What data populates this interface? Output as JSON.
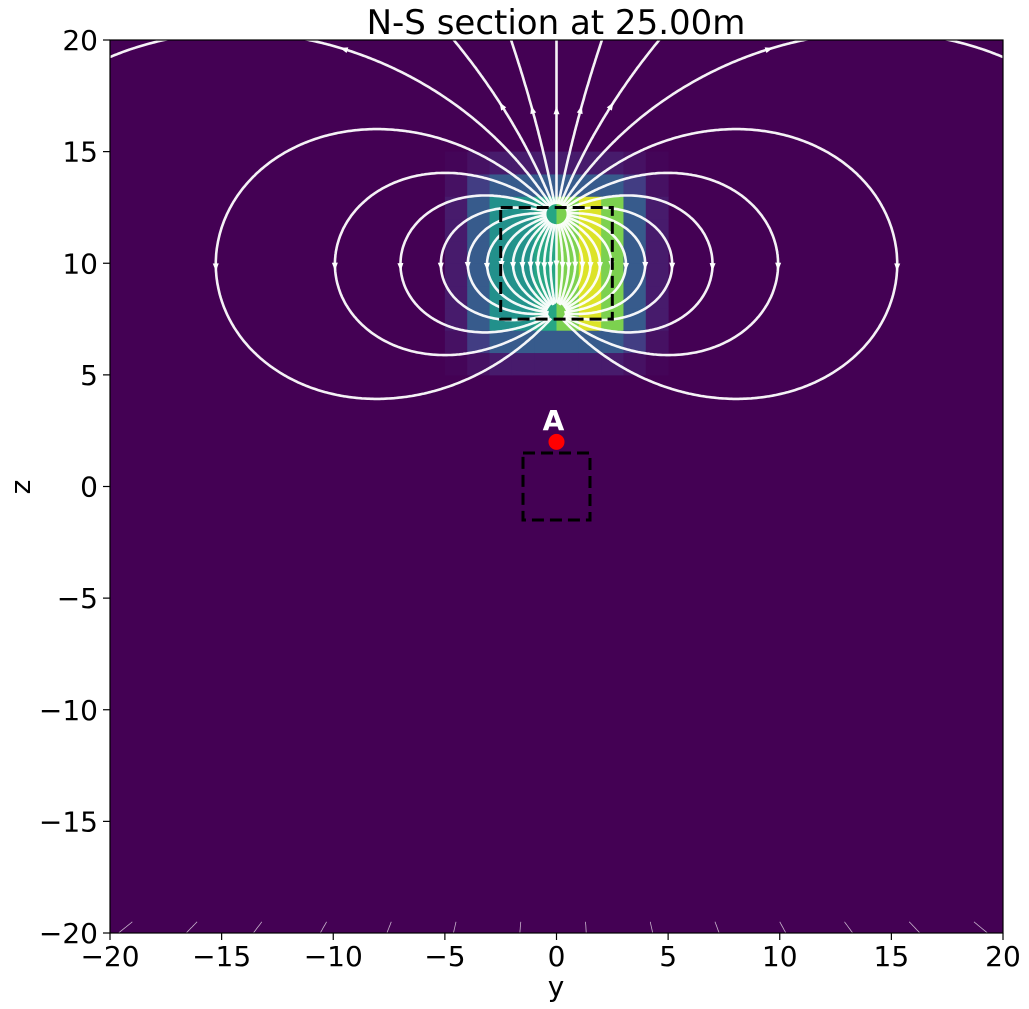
{
  "chart_data": {
    "type": "heatmap",
    "title": "N-S section at 25.00m",
    "xlabel": "y",
    "ylabel": "z",
    "xlim": [
      -20,
      20
    ],
    "ylim": [
      -20,
      20
    ],
    "x_ticks": [
      -20,
      -15,
      -10,
      -5,
      0,
      5,
      10,
      15,
      20
    ],
    "y_ticks": [
      -20,
      -15,
      -10,
      -5,
      0,
      5,
      10,
      15,
      20
    ],
    "x_tick_labels": [
      "−20",
      "−15",
      "−10",
      "−5",
      "0",
      "5",
      "10",
      "15",
      "20"
    ],
    "y_tick_labels": [
      "−20",
      "−15",
      "−10",
      "−5",
      "0",
      "5",
      "10",
      "15",
      "20"
    ],
    "colormap": "viridis",
    "background_color": "#440154",
    "field_source": {
      "center": [
        0,
        10
      ],
      "magnitude_peak_y": 1.5
    },
    "streamline_color": "#ffffff",
    "dashed_boxes": [
      {
        "name": "source-block",
        "y": [
          -2.5,
          2.5
        ],
        "z": [
          7.5,
          12.5
        ]
      },
      {
        "name": "target-block",
        "y": [
          -1.5,
          1.5
        ],
        "z": [
          -1.5,
          1.5
        ]
      }
    ],
    "point": {
      "label": "A",
      "y": 0,
      "z": 2,
      "color": "#ff0000"
    },
    "grid": false,
    "legend": "none"
  }
}
